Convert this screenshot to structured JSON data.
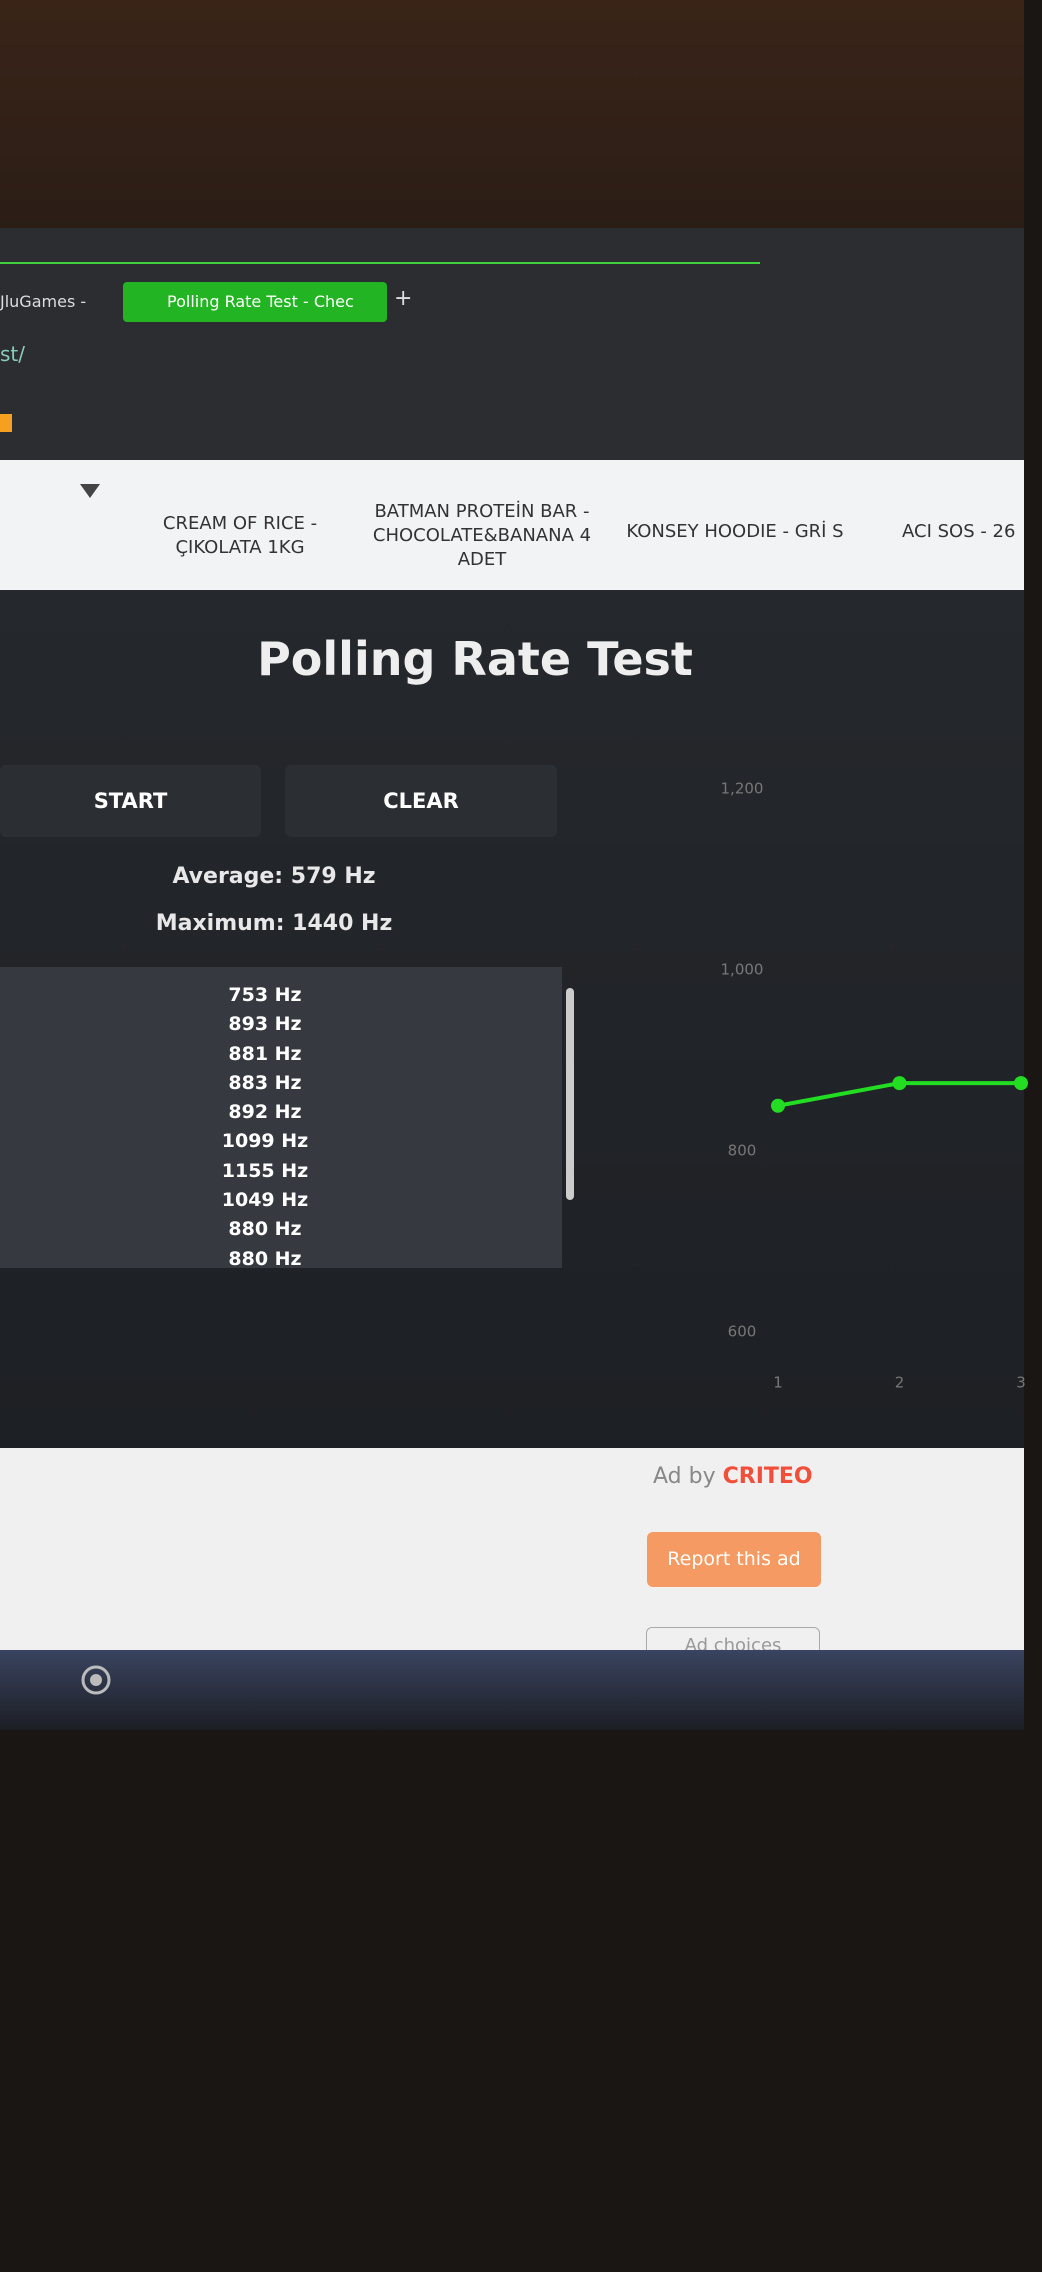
{
  "browser": {
    "tabs": [
      "JluGames - ",
      "Polling Rate Test - Chec"
    ],
    "new_tab": "+",
    "url": "st/"
  },
  "nav": {
    "items": [
      "CREAM OF RICE - ÇIKOLATA 1KG",
      "BATMAN PROTEİN BAR - CHOCOLATE&BANANA 4 ADET",
      "KONSEY HOODIE - GRİ S",
      "ACI SOS - 26"
    ]
  },
  "app": {
    "title": "Polling Rate Test",
    "start": "START",
    "clear": "CLEAR",
    "average": "Average: 579 Hz",
    "maximum": "Maximum: 1440 Hz",
    "readings": [
      "753 Hz",
      "893 Hz",
      "881 Hz",
      "883 Hz",
      "892 Hz",
      "1099 Hz",
      "1155 Hz",
      "1049 Hz",
      "880 Hz",
      "880 Hz"
    ]
  },
  "chart_data": {
    "type": "line",
    "x": [
      1,
      2,
      3
    ],
    "xlim": [
      1,
      3
    ],
    "xticks": [
      1,
      2,
      3
    ],
    "ylim": [
      600,
      1200
    ],
    "yticks": [
      600,
      800,
      {
        "value": 1000,
        "label": "1,000"
      },
      {
        "value": 1200,
        "label": "1,200"
      }
    ],
    "series": [
      {
        "color": "#22dd22",
        "values": [
          850,
          875,
          875
        ]
      }
    ]
  },
  "ad": {
    "ad_by": "Ad by",
    "brand": "CRITEO",
    "report": "Report this ad",
    "choices": "Ad choices"
  }
}
